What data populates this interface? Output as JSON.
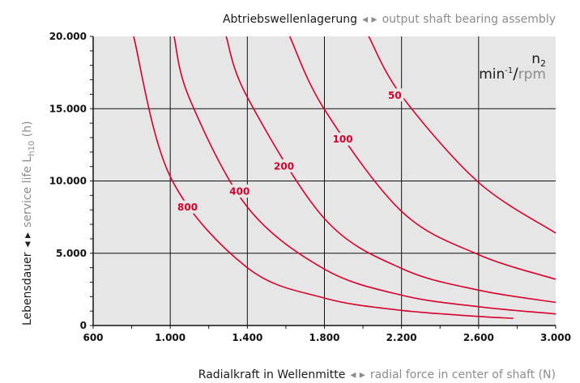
{
  "colors": {
    "plot_bg": "#e6e6e6",
    "grid": "#111111",
    "curve": "#d6002a",
    "primary_text": "#1a1a1a",
    "secondary_text": "#8c8c8c"
  },
  "chart_data": {
    "type": "line",
    "title": {
      "de": "Abtriebswellenlagerung",
      "en": "output shaft bearing assembly"
    },
    "xlabel": {
      "de": "Radialkraft in Wellenmitte",
      "en": "radial force in center of shaft (N)"
    },
    "ylabel": {
      "de": "Lebensdauer",
      "en": "service life L",
      "sub": "h10",
      "unit": " (h)"
    },
    "xlim": [
      600,
      3000
    ],
    "ylim": [
      0,
      20000
    ],
    "x_ticks": [
      600,
      1000,
      1400,
      1800,
      2200,
      2600,
      3000
    ],
    "x_tick_labels": [
      "600",
      "1.000",
      "1.400",
      "1.800",
      "2.200",
      "2.600",
      "3.000"
    ],
    "y_ticks": [
      0,
      5000,
      10000,
      15000,
      20000
    ],
    "y_tick_labels": [
      "0",
      "5.000",
      "10.000",
      "15.000",
      "20.000"
    ],
    "x_gridlines": [
      1000,
      1400,
      1800,
      2200,
      2600
    ],
    "y_gridlines": [
      5000,
      10000,
      15000
    ],
    "legend_title": {
      "n": "n",
      "n_sub": "2",
      "unit_de": "min",
      "unit_de_sup": "-1",
      "slash": "/",
      "unit_en": "rpm"
    },
    "series": [
      {
        "name": "800",
        "label_at": [
          1090,
          8200
        ],
        "x": [
          810,
          1000,
          1400,
          1800,
          2200,
          2600,
          2780
        ],
        "y": [
          20000,
          10300,
          4000,
          1900,
          1050,
          630,
          500
        ]
      },
      {
        "name": "400",
        "label_at": [
          1360,
          9300
        ],
        "x": [
          1020,
          1100,
          1400,
          1800,
          2200,
          2600,
          3000
        ],
        "y": [
          20000,
          15700,
          8200,
          3900,
          2100,
          1300,
          800
        ]
      },
      {
        "name": "200",
        "label_at": [
          1590,
          11050
        ],
        "x": [
          1290,
          1400,
          1800,
          2200,
          2600,
          3000
        ],
        "y": [
          20000,
          15800,
          7400,
          3950,
          2450,
          1600
        ]
      },
      {
        "name": "100",
        "label_at": [
          1895,
          12900
        ],
        "x": [
          1620,
          1800,
          2200,
          2600,
          3000
        ],
        "y": [
          20000,
          14950,
          7900,
          4900,
          3200
        ]
      },
      {
        "name": "50",
        "label_at": [
          2165,
          15950
        ],
        "x": [
          2030,
          2200,
          2600,
          3000
        ],
        "y": [
          20000,
          15900,
          9900,
          6400
        ]
      }
    ]
  }
}
